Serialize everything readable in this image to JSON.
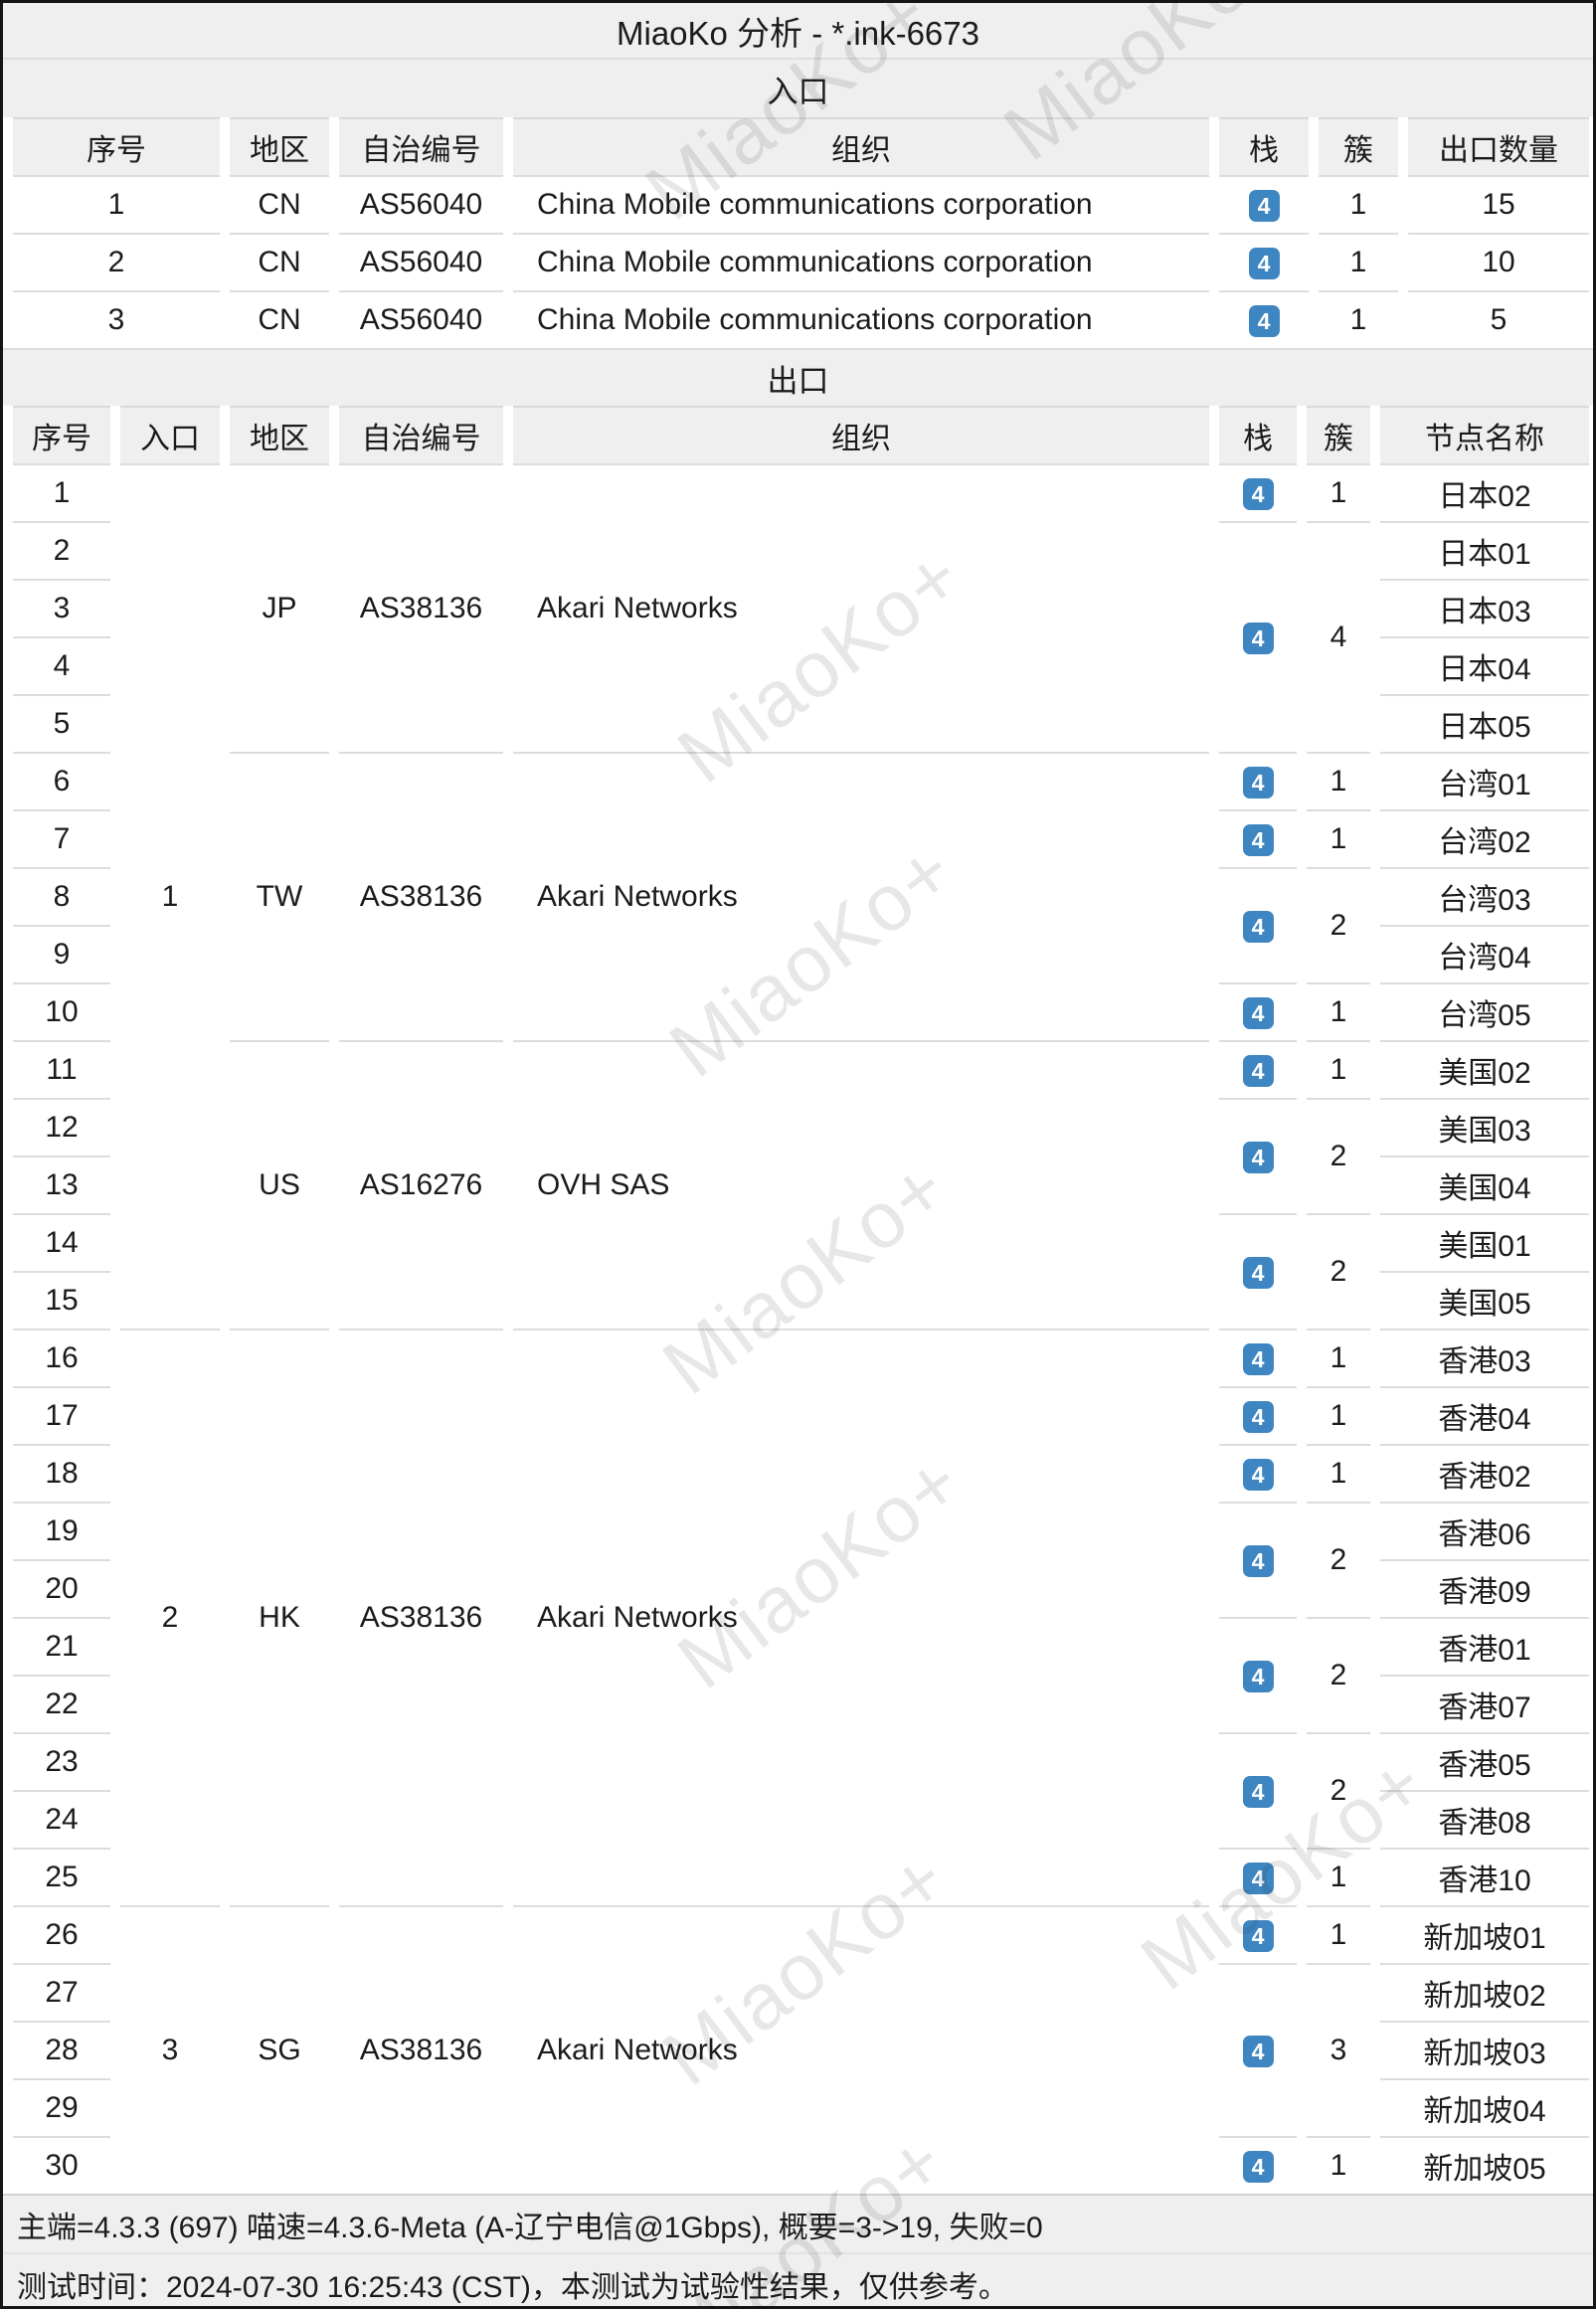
{
  "title": "MiaoKo 分析 - *.ink-6673",
  "badge_label": "4",
  "colors": {
    "badge_blue": "#3e86c1",
    "panel_gray": "#efefef",
    "row_border": "#dcdcdc"
  },
  "watermark_text": "MiaoKo+",
  "entrance": {
    "heading": "入口",
    "columns": [
      "序号",
      "地区",
      "自治编号",
      "组织",
      "栈",
      "簇",
      "出口数量"
    ],
    "rows": [
      {
        "seq": "1",
        "region": "CN",
        "asn": "AS56040",
        "org": "China Mobile communications corporation",
        "stack": "4",
        "cluster": "1",
        "exit_count": "15"
      },
      {
        "seq": "2",
        "region": "CN",
        "asn": "AS56040",
        "org": "China Mobile communications corporation",
        "stack": "4",
        "cluster": "1",
        "exit_count": "10"
      },
      {
        "seq": "3",
        "region": "CN",
        "asn": "AS56040",
        "org": "China Mobile communications corporation",
        "stack": "4",
        "cluster": "1",
        "exit_count": "5"
      }
    ]
  },
  "exit": {
    "heading": "出口",
    "columns": [
      "序号",
      "入口",
      "地区",
      "自治编号",
      "组织",
      "栈",
      "簇",
      "节点名称"
    ],
    "entrance_spans": [
      {
        "label": "1",
        "rows": 15
      },
      {
        "label": "2",
        "rows": 10
      },
      {
        "label": "3",
        "rows": 5
      }
    ],
    "region_groups": [
      {
        "region": "JP",
        "asn": "AS38136",
        "org": "Akari Networks",
        "rows": 5
      },
      {
        "region": "TW",
        "asn": "AS38136",
        "org": "Akari Networks",
        "rows": 5
      },
      {
        "region": "US",
        "asn": "AS16276",
        "org": "OVH SAS",
        "rows": 5
      },
      {
        "region": "HK",
        "asn": "AS38136",
        "org": "Akari Networks",
        "rows": 10
      },
      {
        "region": "SG",
        "asn": "AS38136",
        "org": "Akari Networks",
        "rows": 5
      }
    ],
    "stack_groups": [
      {
        "stack": "4",
        "cluster": "1",
        "nodes": [
          "日本02"
        ]
      },
      {
        "stack": "4",
        "cluster": "4",
        "nodes": [
          "日本01",
          "日本03",
          "日本04",
          "日本05"
        ]
      },
      {
        "stack": "4",
        "cluster": "1",
        "nodes": [
          "台湾01"
        ]
      },
      {
        "stack": "4",
        "cluster": "1",
        "nodes": [
          "台湾02"
        ]
      },
      {
        "stack": "4",
        "cluster": "2",
        "nodes": [
          "台湾03",
          "台湾04"
        ]
      },
      {
        "stack": "4",
        "cluster": "1",
        "nodes": [
          "台湾05"
        ]
      },
      {
        "stack": "4",
        "cluster": "1",
        "nodes": [
          "美国02"
        ]
      },
      {
        "stack": "4",
        "cluster": "2",
        "nodes": [
          "美国03",
          "美国04"
        ]
      },
      {
        "stack": "4",
        "cluster": "2",
        "nodes": [
          "美国01",
          "美国05"
        ]
      },
      {
        "stack": "4",
        "cluster": "1",
        "nodes": [
          "香港03"
        ]
      },
      {
        "stack": "4",
        "cluster": "1",
        "nodes": [
          "香港04"
        ]
      },
      {
        "stack": "4",
        "cluster": "1",
        "nodes": [
          "香港02"
        ]
      },
      {
        "stack": "4",
        "cluster": "2",
        "nodes": [
          "香港06",
          "香港09"
        ]
      },
      {
        "stack": "4",
        "cluster": "2",
        "nodes": [
          "香港01",
          "香港07"
        ]
      },
      {
        "stack": "4",
        "cluster": "2",
        "nodes": [
          "香港05",
          "香港08"
        ]
      },
      {
        "stack": "4",
        "cluster": "1",
        "nodes": [
          "香港10"
        ]
      },
      {
        "stack": "4",
        "cluster": "1",
        "nodes": [
          "新加坡01"
        ]
      },
      {
        "stack": "4",
        "cluster": "3",
        "nodes": [
          "新加坡02",
          "新加坡03",
          "新加坡04"
        ]
      },
      {
        "stack": "4",
        "cluster": "1",
        "nodes": [
          "新加坡05"
        ]
      }
    ]
  },
  "footer": {
    "line1": "主端=4.3.3 (697) 喵速=4.3.6-Meta (A-辽宁电信@1Gbps), 概要=3->19, 失败=0",
    "line2": "测试时间：2024-07-30 16:25:43 (CST)，本测试为试验性结果，仅供参考。"
  }
}
